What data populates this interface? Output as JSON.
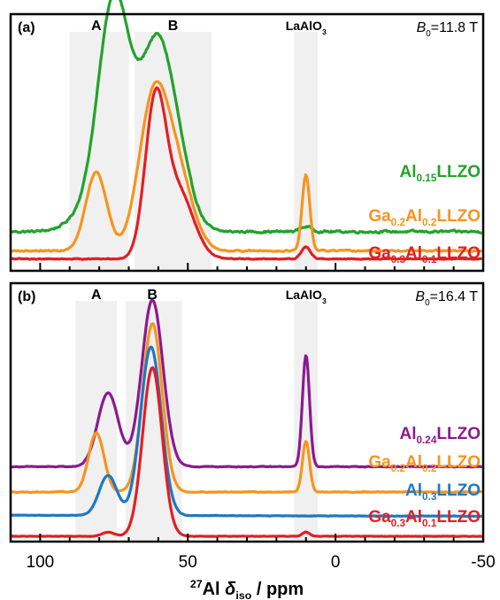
{
  "chart_data": [
    {
      "type": "line",
      "panel_label": "(a)",
      "field_label": {
        "symbol": "B",
        "subscript": "0",
        "value": "=11.8 T"
      },
      "region_labels": [
        {
          "text": "A",
          "range": [
            90,
            70
          ],
          "center": 81
        },
        {
          "text": "B",
          "range": [
            68,
            42
          ],
          "center": 55
        },
        {
          "text": "LaAlO",
          "subscript": "3",
          "range": [
            14,
            6
          ],
          "center": 10
        }
      ],
      "xlim": [
        110,
        -50
      ],
      "series": [
        {
          "name_parts": [
            {
              "t": "Al"
            },
            {
              "t": "0.15",
              "sub": true
            },
            {
              "t": "LLZO"
            }
          ],
          "color": "#22a32a",
          "baseline": 0.3,
          "noise": 0.01,
          "slope": 0.0,
          "peaks": [
            {
              "x": 81,
              "h": 0.25,
              "w": 7
            },
            {
              "x": 75.5,
              "h": 1.85,
              "w": 5
            },
            {
              "x": 70,
              "h": 0.55,
              "w": 5
            },
            {
              "x": 61,
              "h": 1.55,
              "w": 5
            },
            {
              "x": 54,
              "h": 0.7,
              "w": 5
            },
            {
              "x": 10,
              "h": 0.05,
              "w": 2
            }
          ]
        },
        {
          "name_parts": [
            {
              "t": "Ga"
            },
            {
              "t": "0.2",
              "sub": true
            },
            {
              "t": "Al"
            },
            {
              "t": "0.2",
              "sub": true
            },
            {
              "t": "LLZO"
            }
          ],
          "color": "#f7941d",
          "baseline": 0.11,
          "noise": 0.006,
          "slope": 0.0,
          "peaks": [
            {
              "x": 81,
              "h": 0.78,
              "w": 3.5
            },
            {
              "x": 61.5,
              "h": 1.5,
              "w": 5
            },
            {
              "x": 53,
              "h": 0.65,
              "w": 5
            },
            {
              "x": 10,
              "h": 0.75,
              "w": 1.3
            }
          ]
        },
        {
          "name_parts": [
            {
              "t": "Ga"
            },
            {
              "t": "0.3",
              "sub": true
            },
            {
              "t": "Al"
            },
            {
              "t": "0.1",
              "sub": true
            },
            {
              "t": "LLZO"
            }
          ],
          "color": "#e31e24",
          "baseline": 0.03,
          "noise": 0.004,
          "slope": 0.0,
          "peaks": [
            {
              "x": 61,
              "h": 1.5,
              "w": 3.5
            },
            {
              "x": 53,
              "h": 0.65,
              "w": 5
            },
            {
              "x": 10,
              "h": 0.12,
              "w": 1.5
            }
          ]
        }
      ]
    },
    {
      "type": "line",
      "panel_label": "(b)",
      "field_label": {
        "symbol": "B",
        "subscript": "0",
        "value": "=16.4 T"
      },
      "region_labels": [
        {
          "text": "A",
          "range": [
            88,
            74
          ],
          "center": 81
        },
        {
          "text": "B",
          "range": [
            71,
            52
          ],
          "center": 62
        },
        {
          "text": "LaAlO",
          "subscript": "3",
          "range": [
            14,
            6
          ],
          "center": 10
        }
      ],
      "xlim": [
        110,
        -50
      ],
      "xticks": [
        100,
        50,
        0,
        -50
      ],
      "xtick_labels": [
        "100",
        "50",
        "0",
        "-50"
      ],
      "xlabel_parts": [
        {
          "t": "27",
          "sup": true
        },
        {
          "t": "Al "
        },
        {
          "t": "δ",
          "italic": true
        },
        {
          "t": "iso",
          "sub": true
        },
        {
          "t": " / ppm"
        }
      ],
      "series": [
        {
          "name_parts": [
            {
              "t": "Al"
            },
            {
              "t": "0.24",
              "sub": true
            },
            {
              "t": "LLZO"
            }
          ],
          "color": "#8b1a8e",
          "baseline": 0.33,
          "noise": 0.0015,
          "slope": 0.0,
          "peaks": [
            {
              "x": 77,
              "h": 0.35,
              "w": 3.5
            },
            {
              "x": 62,
              "h": 0.79,
              "w": 3.6
            },
            {
              "x": 10,
              "h": 0.53,
              "w": 1.2
            }
          ]
        },
        {
          "name_parts": [
            {
              "t": "Ga"
            },
            {
              "t": "0.2",
              "sub": true
            },
            {
              "t": "Al"
            },
            {
              "t": "0.2",
              "sub": true
            },
            {
              "t": "LLZO"
            }
          ],
          "color": "#f7941d",
          "baseline": 0.21,
          "noise": 0.0015,
          "slope": 0.0,
          "peaks": [
            {
              "x": 81,
              "h": 0.28,
              "w": 2.6
            },
            {
              "x": 62,
              "h": 0.8,
              "w": 3.3
            },
            {
              "x": 10,
              "h": 0.24,
              "w": 1.2
            }
          ]
        },
        {
          "name_parts": [
            {
              "t": "Al"
            },
            {
              "t": "0.3",
              "sub": true
            },
            {
              "t": "LLZO"
            }
          ],
          "color": "#1f78c1",
          "baseline": 0.1,
          "noise": 0.0008,
          "slope": -3e-05,
          "peaks": [
            {
              "x": 77,
              "h": 0.19,
              "w": 3.0
            },
            {
              "x": 62.5,
              "h": 0.8,
              "w": 3.5
            }
          ]
        },
        {
          "name_parts": [
            {
              "t": "Ga"
            },
            {
              "t": "0.3",
              "sub": true
            },
            {
              "t": "Al"
            },
            {
              "t": "0.1",
              "sub": true
            },
            {
              "t": "LLZO"
            }
          ],
          "color": "#e31e24",
          "baseline": 0.0,
          "noise": 0.0008,
          "slope": 0.0,
          "peaks": [
            {
              "x": 62,
              "h": 0.8,
              "w": 3.3
            },
            {
              "x": 77,
              "h": 0.02,
              "w": 2.0
            },
            {
              "x": 10,
              "h": 0.02,
              "w": 1.2
            }
          ]
        }
      ]
    }
  ]
}
